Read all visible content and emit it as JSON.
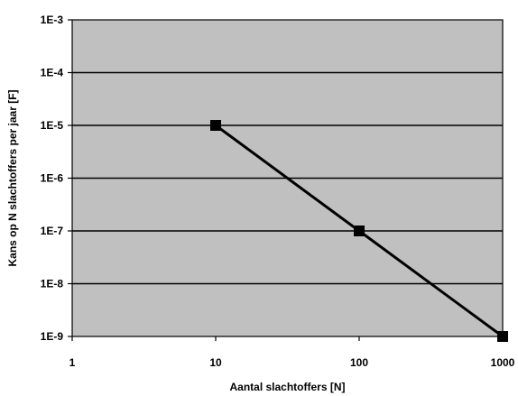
{
  "chart_data": {
    "type": "line",
    "xlabel": "Aantal slachtoffers [N]",
    "ylabel": "Kans op N slachtoffers per jaar [F]",
    "x_scale": "log",
    "y_scale": "log",
    "xlim": [
      1,
      1000
    ],
    "ylim": [
      1e-09,
      0.001
    ],
    "x_ticks": [
      1,
      10,
      100,
      1000
    ],
    "x_tick_labels": [
      "1",
      "10",
      "100",
      "1000"
    ],
    "y_ticks": [
      0.001,
      0.0001,
      1e-05,
      1e-06,
      1e-07,
      1e-08,
      1e-09
    ],
    "y_tick_labels": [
      "1E-3",
      "1E-4",
      "1E-5",
      "1E-6",
      "1E-7",
      "1E-8",
      "1E-9"
    ],
    "grid": "horizontal",
    "legend": "none",
    "series": [
      {
        "x": [
          10,
          100,
          1000
        ],
        "y": [
          1e-05,
          1e-07,
          1e-09
        ]
      }
    ],
    "colors": {
      "plot_background": "#c0c0c0",
      "line": "#000000",
      "marker": "#000000",
      "grid": "#000000"
    }
  }
}
